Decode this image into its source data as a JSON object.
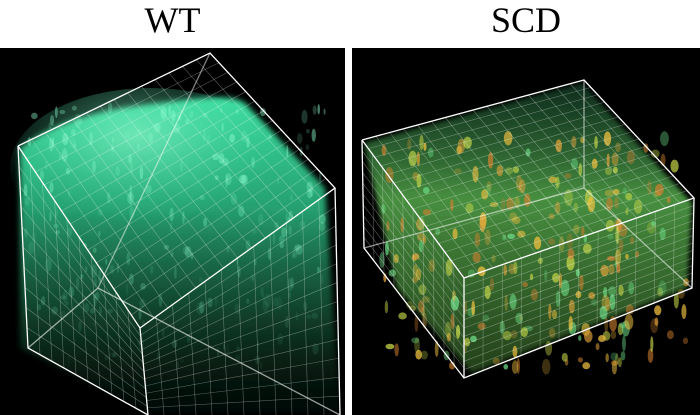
{
  "panels": [
    {
      "label": "WT",
      "tint": "#2fdc9e",
      "speckle": "#8fffd0"
    },
    {
      "label": "SCD",
      "tint": "#6cbf4a",
      "speckle": "#e0a23a"
    }
  ],
  "colors": {
    "background": "#000000",
    "grid": "#ffffff",
    "gap": "#ffffff"
  }
}
